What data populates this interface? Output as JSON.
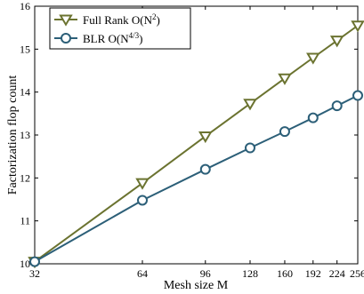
{
  "chart_data": {
    "type": "line",
    "xlabel": "Mesh size M",
    "ylabel": "Factorization flop count",
    "x_scale": "log",
    "x_ticks": [
      32,
      64,
      96,
      128,
      160,
      192,
      224,
      256
    ],
    "x_tick_labels": [
      "32",
      "64",
      "96",
      "128",
      "160",
      "192",
      "224",
      "256"
    ],
    "xlim": [
      32,
      256
    ],
    "y_ticks": [
      10,
      11,
      12,
      13,
      14,
      15,
      16
    ],
    "y_tick_labels": [
      "10",
      "11",
      "12",
      "13",
      "14",
      "15",
      "16"
    ],
    "ylim": [
      10,
      16
    ],
    "grid": false,
    "legend_position": "top-left",
    "series": [
      {
        "name": "Full Rank O(N²)",
        "name_main": "Full Rank O(N",
        "name_sup": "2",
        "name_end": ")",
        "marker": "triangle-down",
        "color": "#6b7330",
        "x": [
          32,
          64,
          96,
          128,
          160,
          192,
          224,
          256
        ],
        "y": [
          10.05,
          11.88,
          12.97,
          13.73,
          14.32,
          14.8,
          15.2,
          15.55
        ]
      },
      {
        "name": "BLR O(N⁴ᐟ³)",
        "name_main": "BLR O(N",
        "name_sup": "4/3",
        "name_end": ")",
        "marker": "circle",
        "color": "#2c5f78",
        "x": [
          32,
          64,
          96,
          128,
          160,
          192,
          224,
          256
        ],
        "y": [
          10.05,
          11.48,
          12.2,
          12.7,
          13.08,
          13.4,
          13.68,
          13.92
        ]
      }
    ]
  }
}
